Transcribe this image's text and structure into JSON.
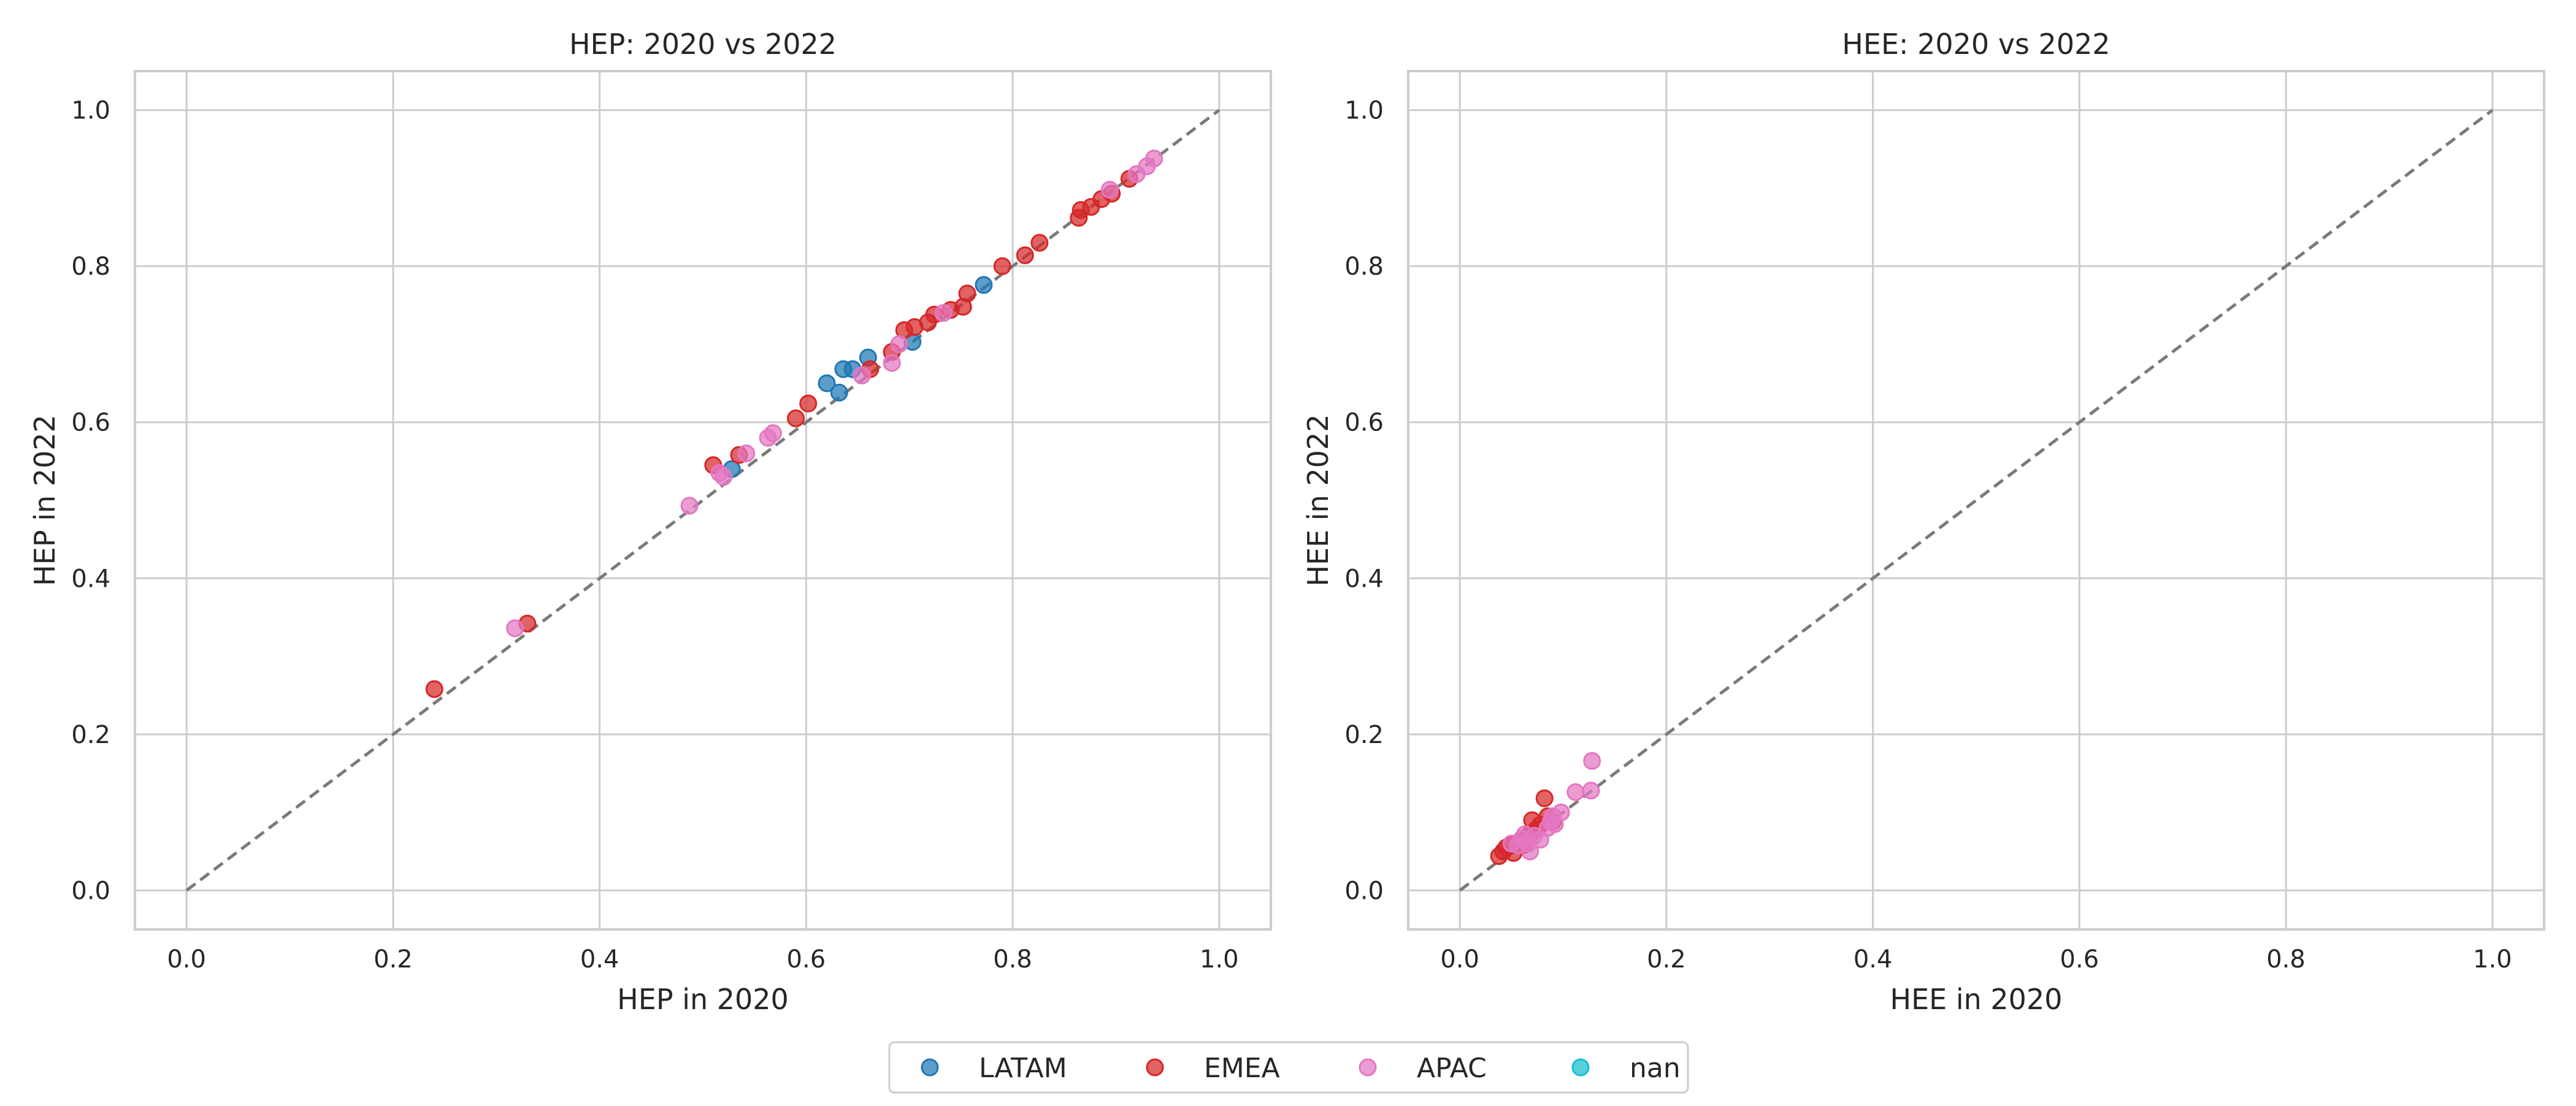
{
  "figure": {
    "background": "#ffffff",
    "legend_position": "bottom-center",
    "legend_entries": [
      {
        "label": "LATAM",
        "color": "#1f77b4"
      },
      {
        "label": "EMEA",
        "color": "#d62728"
      },
      {
        "label": "APAC",
        "color": "#e377c2"
      },
      {
        "label": "nan",
        "color": "#17becf"
      }
    ]
  },
  "chart_data": [
    {
      "type": "scatter",
      "title": "HEP: 2020 vs 2022",
      "xlabel": "HEP in 2020",
      "ylabel": "HEP in 2022",
      "xlim": [
        -0.05,
        1.05
      ],
      "ylim": [
        -0.05,
        1.05
      ],
      "xticks": [
        "0.0",
        "0.2",
        "0.4",
        "0.6",
        "0.8",
        "1.0"
      ],
      "yticks": [
        "0.0",
        "0.2",
        "0.4",
        "0.6",
        "0.8",
        "1.0"
      ],
      "grid": true,
      "reference_line": {
        "from": [
          0,
          0
        ],
        "to": [
          1,
          1
        ],
        "style": "dashed",
        "color": "#7a7a7a"
      },
      "series": [
        {
          "name": "LATAM",
          "color": "#1f77b4",
          "points": [
            [
              0.528,
              0.54
            ],
            [
              0.62,
              0.65
            ],
            [
              0.632,
              0.638
            ],
            [
              0.636,
              0.668
            ],
            [
              0.645,
              0.668
            ],
            [
              0.66,
              0.683
            ],
            [
              0.703,
              0.703
            ],
            [
              0.772,
              0.776
            ]
          ]
        },
        {
          "name": "EMEA",
          "color": "#d62728",
          "points": [
            [
              0.24,
              0.258
            ],
            [
              0.33,
              0.342
            ],
            [
              0.51,
              0.545
            ],
            [
              0.535,
              0.558
            ],
            [
              0.59,
              0.605
            ],
            [
              0.602,
              0.624
            ],
            [
              0.662,
              0.668
            ],
            [
              0.683,
              0.69
            ],
            [
              0.695,
              0.718
            ],
            [
              0.705,
              0.722
            ],
            [
              0.718,
              0.728
            ],
            [
              0.724,
              0.738
            ],
            [
              0.74,
              0.744
            ],
            [
              0.752,
              0.748
            ],
            [
              0.756,
              0.765
            ],
            [
              0.79,
              0.8
            ],
            [
              0.812,
              0.814
            ],
            [
              0.826,
              0.83
            ],
            [
              0.864,
              0.862
            ],
            [
              0.866,
              0.872
            ],
            [
              0.876,
              0.876
            ],
            [
              0.886,
              0.886
            ],
            [
              0.896,
              0.893
            ],
            [
              0.913,
              0.912
            ]
          ]
        },
        {
          "name": "APAC",
          "color": "#e377c2",
          "points": [
            [
              0.318,
              0.336
            ],
            [
              0.487,
              0.493
            ],
            [
              0.516,
              0.535
            ],
            [
              0.52,
              0.53
            ],
            [
              0.542,
              0.56
            ],
            [
              0.563,
              0.58
            ],
            [
              0.568,
              0.586
            ],
            [
              0.654,
              0.66
            ],
            [
              0.683,
              0.676
            ],
            [
              0.69,
              0.7
            ],
            [
              0.733,
              0.74
            ],
            [
              0.894,
              0.898
            ],
            [
              0.92,
              0.918
            ],
            [
              0.93,
              0.928
            ],
            [
              0.937,
              0.938
            ]
          ]
        },
        {
          "name": "nan",
          "color": "#17becf",
          "points": []
        }
      ]
    },
    {
      "type": "scatter",
      "title": "HEE: 2020 vs 2022",
      "xlabel": "HEE in 2020",
      "ylabel": "HEE in 2022",
      "xlim": [
        -0.05,
        1.05
      ],
      "ylim": [
        -0.05,
        1.05
      ],
      "xticks": [
        "0.0",
        "0.2",
        "0.4",
        "0.6",
        "0.8",
        "1.0"
      ],
      "yticks": [
        "0.0",
        "0.2",
        "0.4",
        "0.6",
        "0.8",
        "1.0"
      ],
      "grid": true,
      "reference_line": {
        "from": [
          0,
          0
        ],
        "to": [
          1,
          1
        ],
        "style": "dashed",
        "color": "#7a7a7a"
      },
      "series": [
        {
          "name": "LATAM",
          "color": "#1f77b4",
          "points": []
        },
        {
          "name": "EMEA",
          "color": "#d62728",
          "points": [
            [
              0.038,
              0.044
            ],
            [
              0.042,
              0.05
            ],
            [
              0.045,
              0.055
            ],
            [
              0.05,
              0.058
            ],
            [
              0.052,
              0.048
            ],
            [
              0.055,
              0.06
            ],
            [
              0.058,
              0.062
            ],
            [
              0.062,
              0.058
            ],
            [
              0.065,
              0.068
            ],
            [
              0.068,
              0.072
            ],
            [
              0.07,
              0.09
            ],
            [
              0.074,
              0.078
            ],
            [
              0.078,
              0.084
            ],
            [
              0.082,
              0.118
            ],
            [
              0.085,
              0.095
            ],
            [
              0.09,
              0.088
            ]
          ]
        },
        {
          "name": "APAC",
          "color": "#e377c2",
          "points": [
            [
              0.05,
              0.06
            ],
            [
              0.056,
              0.058
            ],
            [
              0.06,
              0.066
            ],
            [
              0.063,
              0.072
            ],
            [
              0.066,
              0.06
            ],
            [
              0.068,
              0.05
            ],
            [
              0.072,
              0.07
            ],
            [
              0.078,
              0.065
            ],
            [
              0.085,
              0.08
            ],
            [
              0.088,
              0.088
            ],
            [
              0.09,
              0.095
            ],
            [
              0.092,
              0.085
            ],
            [
              0.098,
              0.1
            ],
            [
              0.112,
              0.126
            ],
            [
              0.127,
              0.128
            ],
            [
              0.128,
              0.166
            ]
          ]
        },
        {
          "name": "nan",
          "color": "#17becf",
          "points": []
        }
      ]
    }
  ]
}
